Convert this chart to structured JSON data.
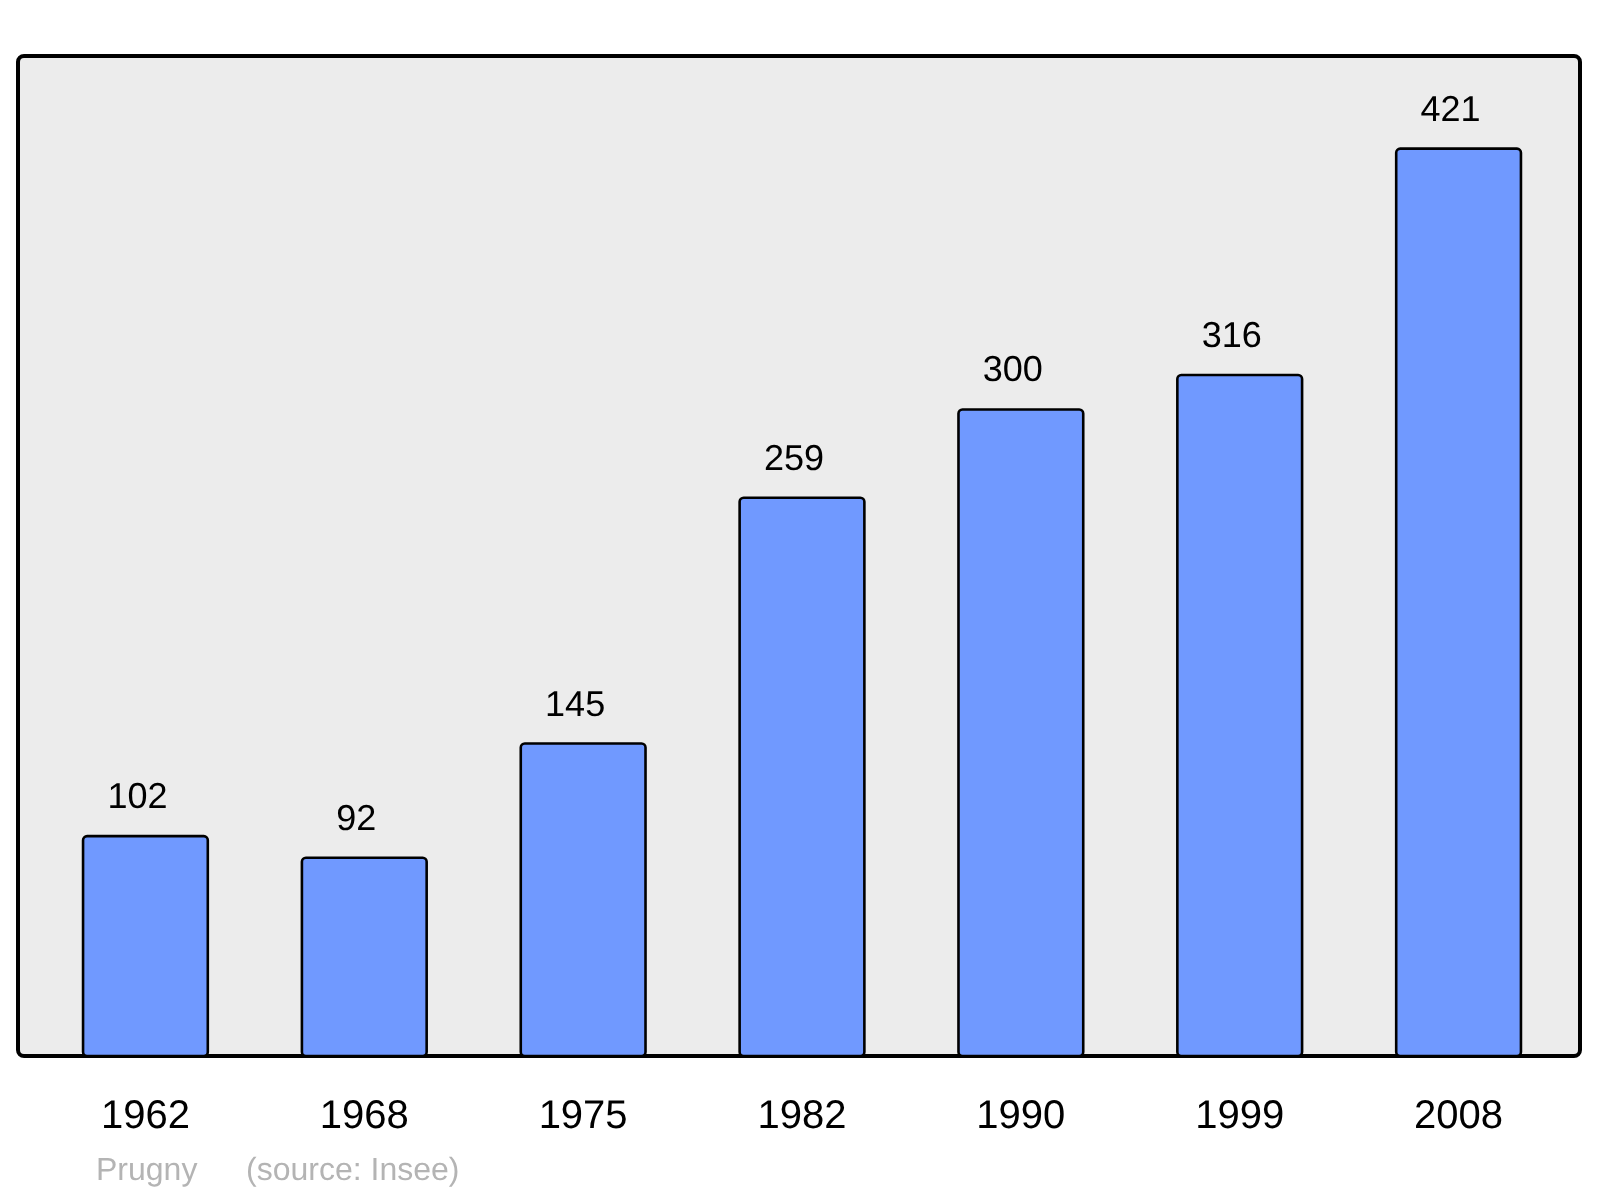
{
  "chart_data": {
    "type": "bar",
    "categories": [
      "1962",
      "1968",
      "1975",
      "1982",
      "1990",
      "1999",
      "2008"
    ],
    "values": [
      102,
      92,
      145,
      259,
      300,
      316,
      421
    ],
    "color": "#7099ff",
    "ylim": [
      0,
      464
    ],
    "data_labels": true,
    "tick_labels": "x",
    "annotations": [
      "Prugny",
      "(source: Insee)"
    ]
  }
}
